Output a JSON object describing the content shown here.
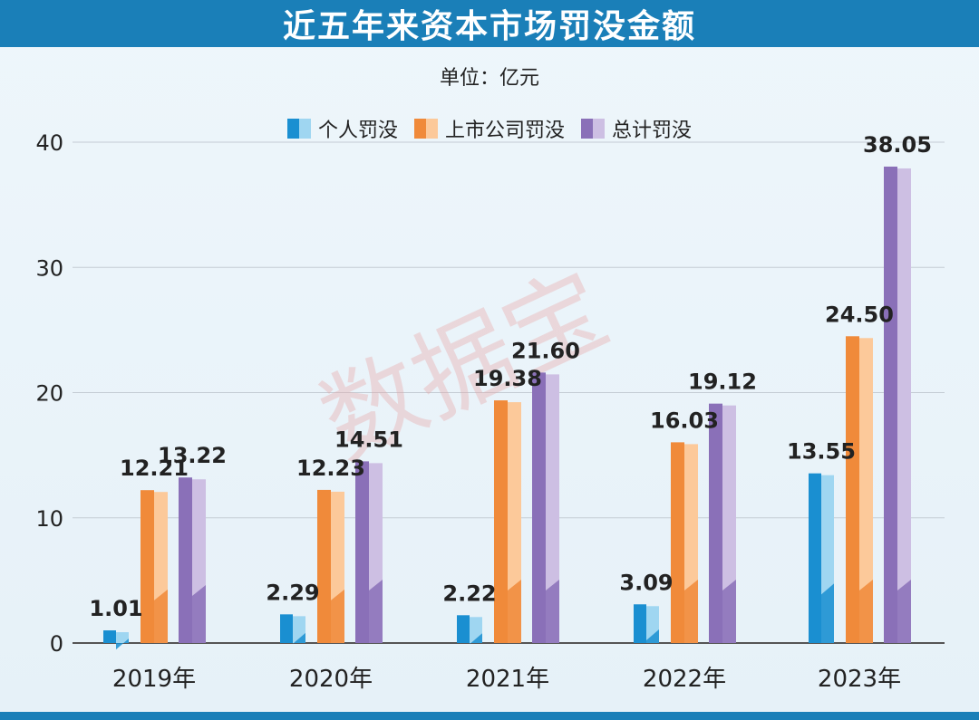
{
  "chart_data": {
    "type": "bar",
    "title": "近五年来资本市场罚没金额",
    "unit": "单位：亿元",
    "categories": [
      "2019年",
      "2020年",
      "2021年",
      "2022年",
      "2023年"
    ],
    "series": [
      {
        "name": "个人罚没",
        "values": [
          1.01,
          2.29,
          2.22,
          3.09,
          13.55
        ],
        "labels": [
          "1.01",
          "2.29",
          "2.22",
          "3.09",
          "13.55"
        ],
        "color": "#1a8fd1",
        "light": "#9fd6f1"
      },
      {
        "name": "上市公司罚没",
        "values": [
          12.21,
          12.23,
          19.38,
          16.03,
          24.5
        ],
        "labels": [
          "12.21",
          "12.23",
          "19.38",
          "16.03",
          "24.50"
        ],
        "color": "#f08a3a",
        "light": "#fcc99a"
      },
      {
        "name": "总计罚没",
        "values": [
          13.22,
          14.51,
          21.6,
          19.12,
          38.05
        ],
        "labels": [
          "13.22",
          "14.51",
          "21.60",
          "19.12",
          "38.05"
        ],
        "color": "#8a70b8",
        "light": "#cdbfe3"
      }
    ],
    "yticks": [
      "0",
      "10",
      "20",
      "30",
      "40"
    ],
    "ylim": [
      0,
      40
    ],
    "grid": true,
    "legend_position": "top-center"
  },
  "watermark": "数据宝"
}
